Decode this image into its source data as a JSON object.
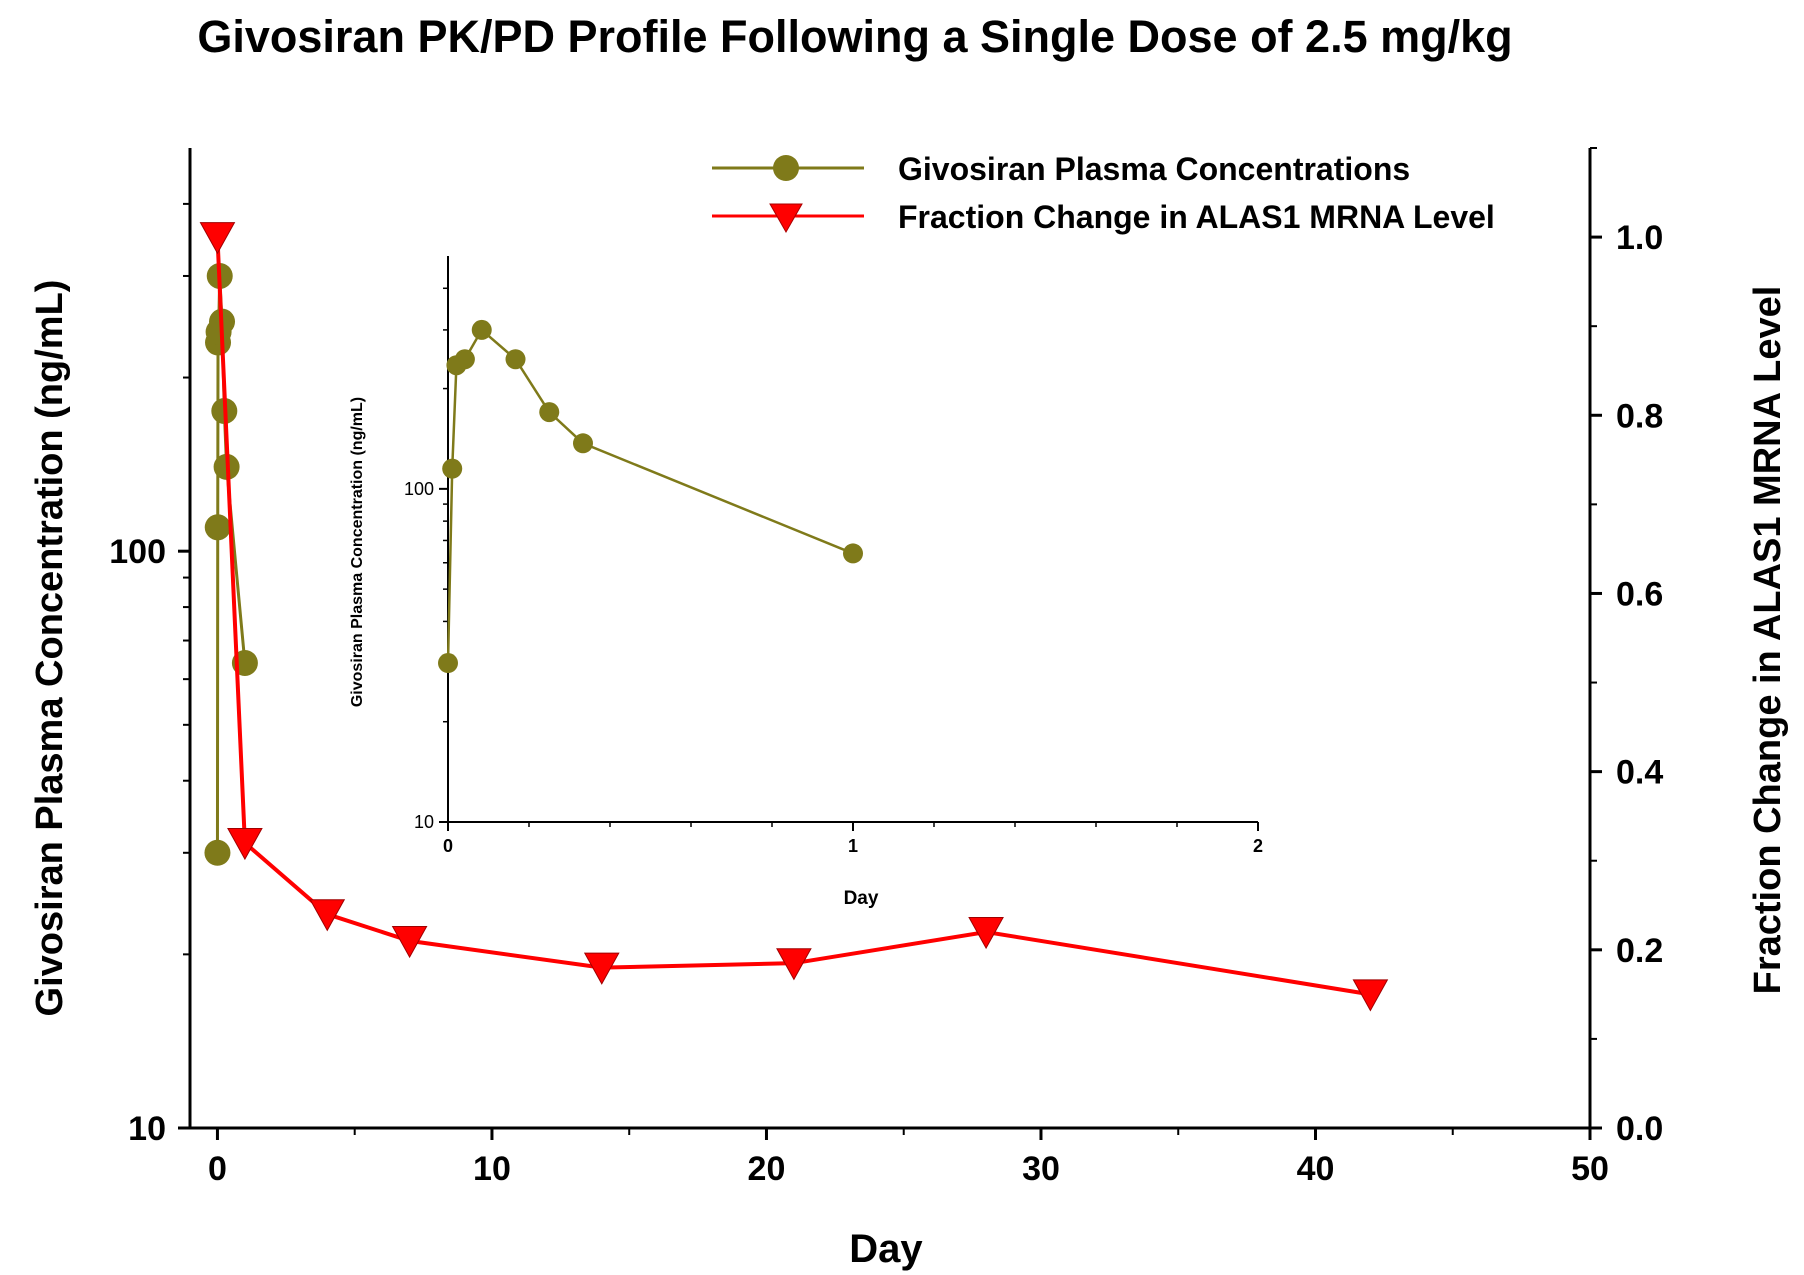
{
  "chart_data": [
    {
      "type": "line",
      "title": "Givosiran PK/PD Profile Following a Single Dose of 2.5 mg/kg",
      "xlabel": "Day",
      "ylabel": "Givosiran Plasma Concentration (ng/mL)",
      "y2label": "Fraction Change in ALAS1 MRNA Level",
      "xlim": [
        -1,
        50
      ],
      "ylim": [
        10,
        500
      ],
      "y_scale": "log",
      "y2lim": [
        0.0,
        1.1
      ],
      "x_ticks": [
        0,
        10,
        20,
        30,
        40,
        50
      ],
      "x_tick_labels": [
        "0",
        "10",
        "20",
        "30",
        "40",
        "50"
      ],
      "y_ticks": [
        10,
        100
      ],
      "y_tick_labels": [
        "10",
        "100"
      ],
      "y2_ticks": [
        0.0,
        0.2,
        0.4,
        0.6,
        0.8,
        1.0
      ],
      "y2_tick_labels": [
        "0.0",
        "0.2",
        "0.4",
        "0.6",
        "0.8",
        "1.0"
      ],
      "legend_position": "top-right",
      "series": [
        {
          "name": "Givosiran Plasma Concentrations",
          "axis": "left",
          "color": "#7f7a1a",
          "marker": "circle",
          "x": [
            0,
            0.0104,
            0.0208,
            0.0417,
            0.0833,
            0.1667,
            0.25,
            0.3333,
            1
          ],
          "y": [
            30,
            110,
            230,
            240,
            300,
            250,
            175,
            140,
            64
          ]
        },
        {
          "name": "Fraction Change in ALAS1 MRNA Level",
          "axis": "right",
          "color": "#ff0000",
          "marker": "triangle-down",
          "x": [
            0,
            1,
            4,
            7,
            14,
            21,
            28,
            42
          ],
          "y": [
            1.0,
            0.32,
            0.24,
            0.21,
            0.18,
            0.185,
            0.22,
            0.15
          ]
        }
      ]
    },
    {
      "type": "line",
      "title": "",
      "xlabel": "Day",
      "ylabel": "Givosiran Plasma Concentration (ng/mL)",
      "xlim": [
        0,
        2
      ],
      "ylim": [
        10,
        500
      ],
      "y_scale": "log",
      "x_ticks": [
        0,
        1,
        2
      ],
      "x_tick_labels": [
        "0",
        "1",
        "2"
      ],
      "y_ticks": [
        10,
        100
      ],
      "y_tick_labels": [
        "10",
        "100"
      ],
      "series": [
        {
          "axis": "left",
          "color": "#7f7a1a",
          "marker": "circle",
          "x": [
            0,
            0.0104,
            0.0208,
            0.0417,
            0.0833,
            0.1667,
            0.25,
            0.3333,
            1
          ],
          "y": [
            30,
            115,
            235,
            245,
            300,
            245,
            170,
            137,
            64
          ]
        }
      ]
    }
  ]
}
